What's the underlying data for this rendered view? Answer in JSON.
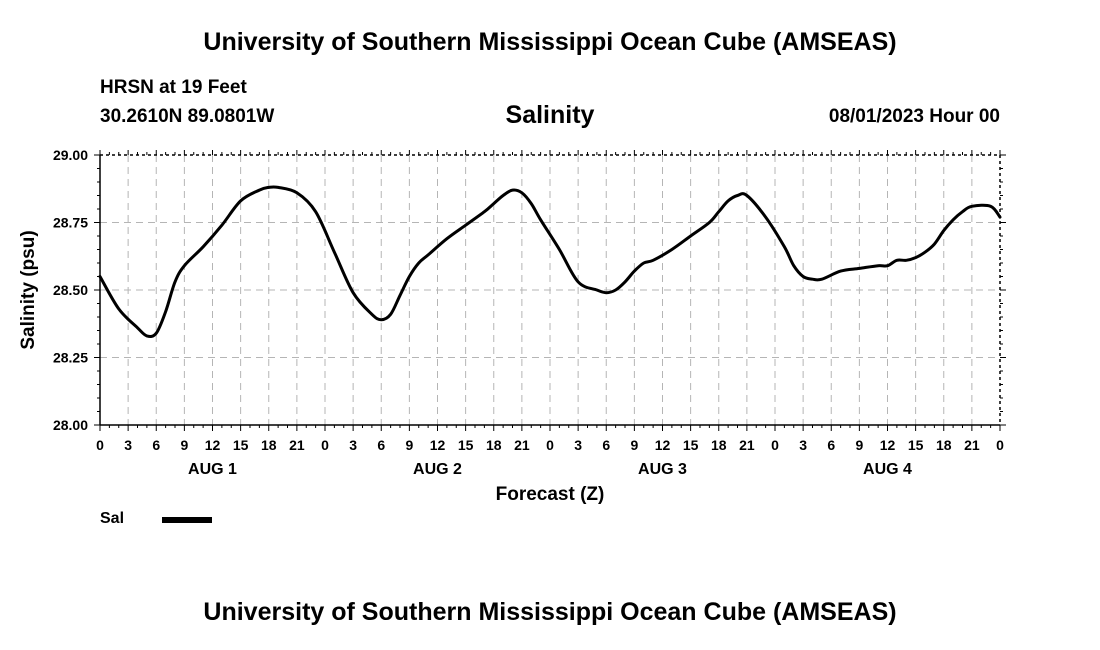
{
  "header": {
    "title": "University of Southern Mississippi Ocean Cube (AMSEAS)",
    "station": "HRSN at 19 Feet",
    "coordinates": "30.2610N  89.0801W",
    "run_time": "08/01/2023 Hour 00"
  },
  "footer": {
    "title": "University of Southern Mississippi Ocean Cube (AMSEAS)"
  },
  "legend": {
    "label": "Sal",
    "color": "#000000"
  },
  "chart_data": {
    "type": "line",
    "title": "Salinity",
    "xlabel": "Forecast (Z)",
    "ylabel": "Salinity (psu)",
    "ylim": [
      28.0,
      29.0
    ],
    "yticks": [
      "28.00",
      "28.25",
      "28.50",
      "28.75",
      "29.00"
    ],
    "xlim": [
      0,
      96
    ],
    "xtick_step_hours": 3,
    "xtick_labels": [
      "0",
      "3",
      "6",
      "9",
      "12",
      "15",
      "18",
      "21",
      "0",
      "3",
      "6",
      "9",
      "12",
      "15",
      "18",
      "21",
      "0",
      "3",
      "6",
      "9",
      "12",
      "15",
      "18",
      "21",
      "0",
      "3",
      "6",
      "9",
      "12",
      "15",
      "18",
      "21",
      "0"
    ],
    "day_labels": [
      {
        "label": "AUG 1",
        "hour": 12
      },
      {
        "label": "AUG 2",
        "hour": 36
      },
      {
        "label": "AUG 3",
        "hour": 60
      },
      {
        "label": "AUG 4",
        "hour": 84
      }
    ],
    "grid": true,
    "series": [
      {
        "name": "Sal",
        "x": [
          0,
          2,
          4,
          5,
          6,
          7,
          8,
          9,
          11,
          13,
          15,
          17,
          18,
          19,
          21,
          23,
          25,
          27,
          29,
          30,
          31,
          32,
          33,
          34,
          35,
          37,
          39,
          41,
          42,
          43,
          44,
          45,
          46,
          47,
          49,
          51,
          53,
          54,
          55,
          56,
          57,
          58,
          59,
          61,
          63,
          65,
          66,
          67,
          68,
          69,
          71,
          73,
          74,
          75,
          76,
          77,
          79,
          81,
          83,
          84,
          85,
          86,
          87,
          88,
          89,
          90,
          91,
          92,
          93,
          95,
          96
        ],
        "values": [
          28.55,
          28.43,
          28.36,
          28.33,
          28.34,
          28.42,
          28.53,
          28.59,
          28.66,
          28.74,
          28.83,
          28.87,
          28.88,
          28.88,
          28.86,
          28.79,
          28.64,
          28.49,
          28.41,
          28.39,
          28.41,
          28.48,
          28.55,
          28.6,
          28.63,
          28.69,
          28.74,
          28.79,
          28.82,
          28.85,
          28.87,
          28.86,
          28.82,
          28.76,
          28.65,
          28.53,
          28.5,
          28.49,
          28.5,
          28.53,
          28.57,
          28.6,
          28.61,
          28.65,
          28.7,
          28.75,
          28.79,
          28.83,
          28.85,
          28.85,
          28.77,
          28.66,
          28.59,
          28.55,
          28.54,
          28.54,
          28.57,
          28.58,
          28.59,
          28.59,
          28.61,
          28.61,
          28.62,
          28.64,
          28.67,
          28.72,
          28.76,
          28.79,
          28.81,
          28.81,
          28.77
        ]
      }
    ]
  }
}
